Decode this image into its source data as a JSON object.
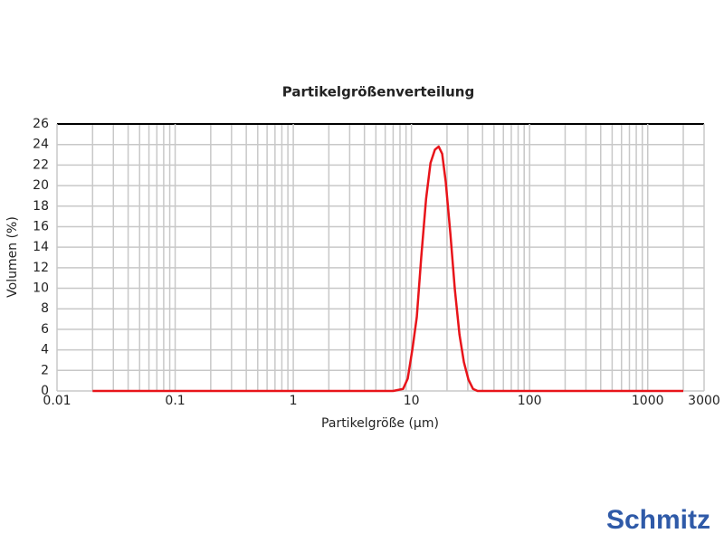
{
  "chart_data": {
    "type": "line",
    "title": "Partikelgrößenverteilung",
    "x_label": "Partikelgröße (µm)",
    "y_label": "Volumen (%)",
    "log_x": true,
    "grid": true,
    "minor_grid": true,
    "xlim": [
      0.01,
      3000
    ],
    "xticks": [
      0.01,
      0.1,
      1,
      10,
      100,
      1000,
      3000
    ],
    "ylim": [
      0,
      26
    ],
    "yticks": [
      0,
      2,
      4,
      6,
      8,
      10,
      12,
      14,
      16,
      18,
      20,
      22,
      24,
      26
    ],
    "series": [
      {
        "name": "Volumen",
        "color": "#e8141a",
        "x": [
          0.02,
          7,
          8.5,
          9.3,
          10.2,
          11.1,
          12.1,
          13.3,
          14.5,
          15.8,
          17,
          18.2,
          19.5,
          21.4,
          23.3,
          25.5,
          27.8,
          30.4,
          33.2,
          36.3,
          2000
        ],
        "values": [
          0,
          0,
          0.2,
          1.2,
          4.1,
          7.2,
          13,
          18.7,
          22.2,
          23.5,
          23.8,
          23.1,
          20.4,
          15.2,
          9.9,
          5.5,
          2.8,
          1.1,
          0.2,
          0,
          0
        ]
      }
    ],
    "logo": "Schmitz"
  }
}
